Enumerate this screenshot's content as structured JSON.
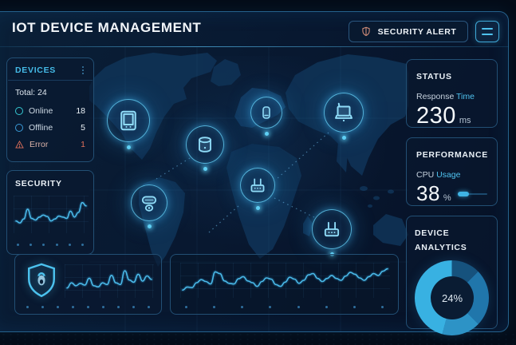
{
  "header": {
    "title": "IOT DEVICE MANAGEMENT",
    "security_alert_label": "SECURITY ALERT"
  },
  "devices_panel": {
    "title": "DEVICES",
    "total_label": "Total: 24",
    "rows": [
      {
        "icon": "online-status-icon",
        "label": "Online",
        "value": "18"
      },
      {
        "icon": "offline-status-icon",
        "label": "Offline",
        "value": "5"
      },
      {
        "icon": "error-warning-icon",
        "label": "Error",
        "value": "1"
      }
    ]
  },
  "security_panel": {
    "title": "SECURITY"
  },
  "status_panel": {
    "title": "STATUS",
    "metric_label_primary": "Response",
    "metric_label_accent": "Time",
    "value": "230",
    "unit": "ms"
  },
  "performance_panel": {
    "title": "PERFORMANCE",
    "metric_label_primary": "CPU",
    "metric_label_accent": "Usage",
    "value": "38",
    "unit": "%",
    "progress_percent": 38
  },
  "analytics_panel": {
    "title": "DEVICE ANALYTICS",
    "center_value": "24%"
  },
  "map": {
    "device_icons": [
      "tablet-icon",
      "database-icon",
      "smart-speaker-icon",
      "laptop-icon",
      "media-device-icon",
      "router-icon",
      "router-icon"
    ]
  },
  "colors": {
    "accent": "#3fb4e4",
    "accent_bright": "#5fd0f5",
    "alert": "#e0705a",
    "shield_alert": "#d8907a",
    "online": "#35c8d2",
    "offline": "#3a9bd8",
    "panel_border": "#224f74"
  },
  "chart_data": [
    {
      "type": "line",
      "name": "security-trend",
      "values": [
        30,
        24,
        36,
        66,
        38,
        33,
        42,
        48,
        44,
        30,
        36,
        45,
        42,
        38,
        60,
        42,
        56,
        86,
        76
      ]
    },
    {
      "type": "line",
      "name": "shield-activity",
      "values": [
        26,
        44,
        34,
        42,
        36,
        60,
        34,
        30,
        44,
        38,
        70,
        44,
        38,
        86,
        54,
        46,
        74,
        50,
        68,
        56
      ]
    },
    {
      "type": "line",
      "name": "network-activity",
      "values": [
        18,
        28,
        26,
        42,
        52,
        46,
        38,
        78,
        72,
        48,
        40,
        38,
        55,
        62,
        48,
        42,
        30,
        46,
        58,
        54,
        36,
        30,
        44,
        60,
        54,
        40,
        50,
        68,
        72,
        56,
        46,
        56,
        66,
        56,
        50,
        64,
        76,
        70,
        58,
        50,
        62,
        72,
        66,
        80,
        88
      ]
    },
    {
      "type": "donut",
      "name": "device-analytics",
      "center_label": "24%",
      "segments": [
        {
          "value": 12.5,
          "color": "#16527d"
        },
        {
          "value": 25.0,
          "color": "#2076ab"
        },
        {
          "value": 16.7,
          "color": "#2d93c6"
        },
        {
          "value": 45.8,
          "color": "#38b1e2"
        }
      ]
    }
  ]
}
